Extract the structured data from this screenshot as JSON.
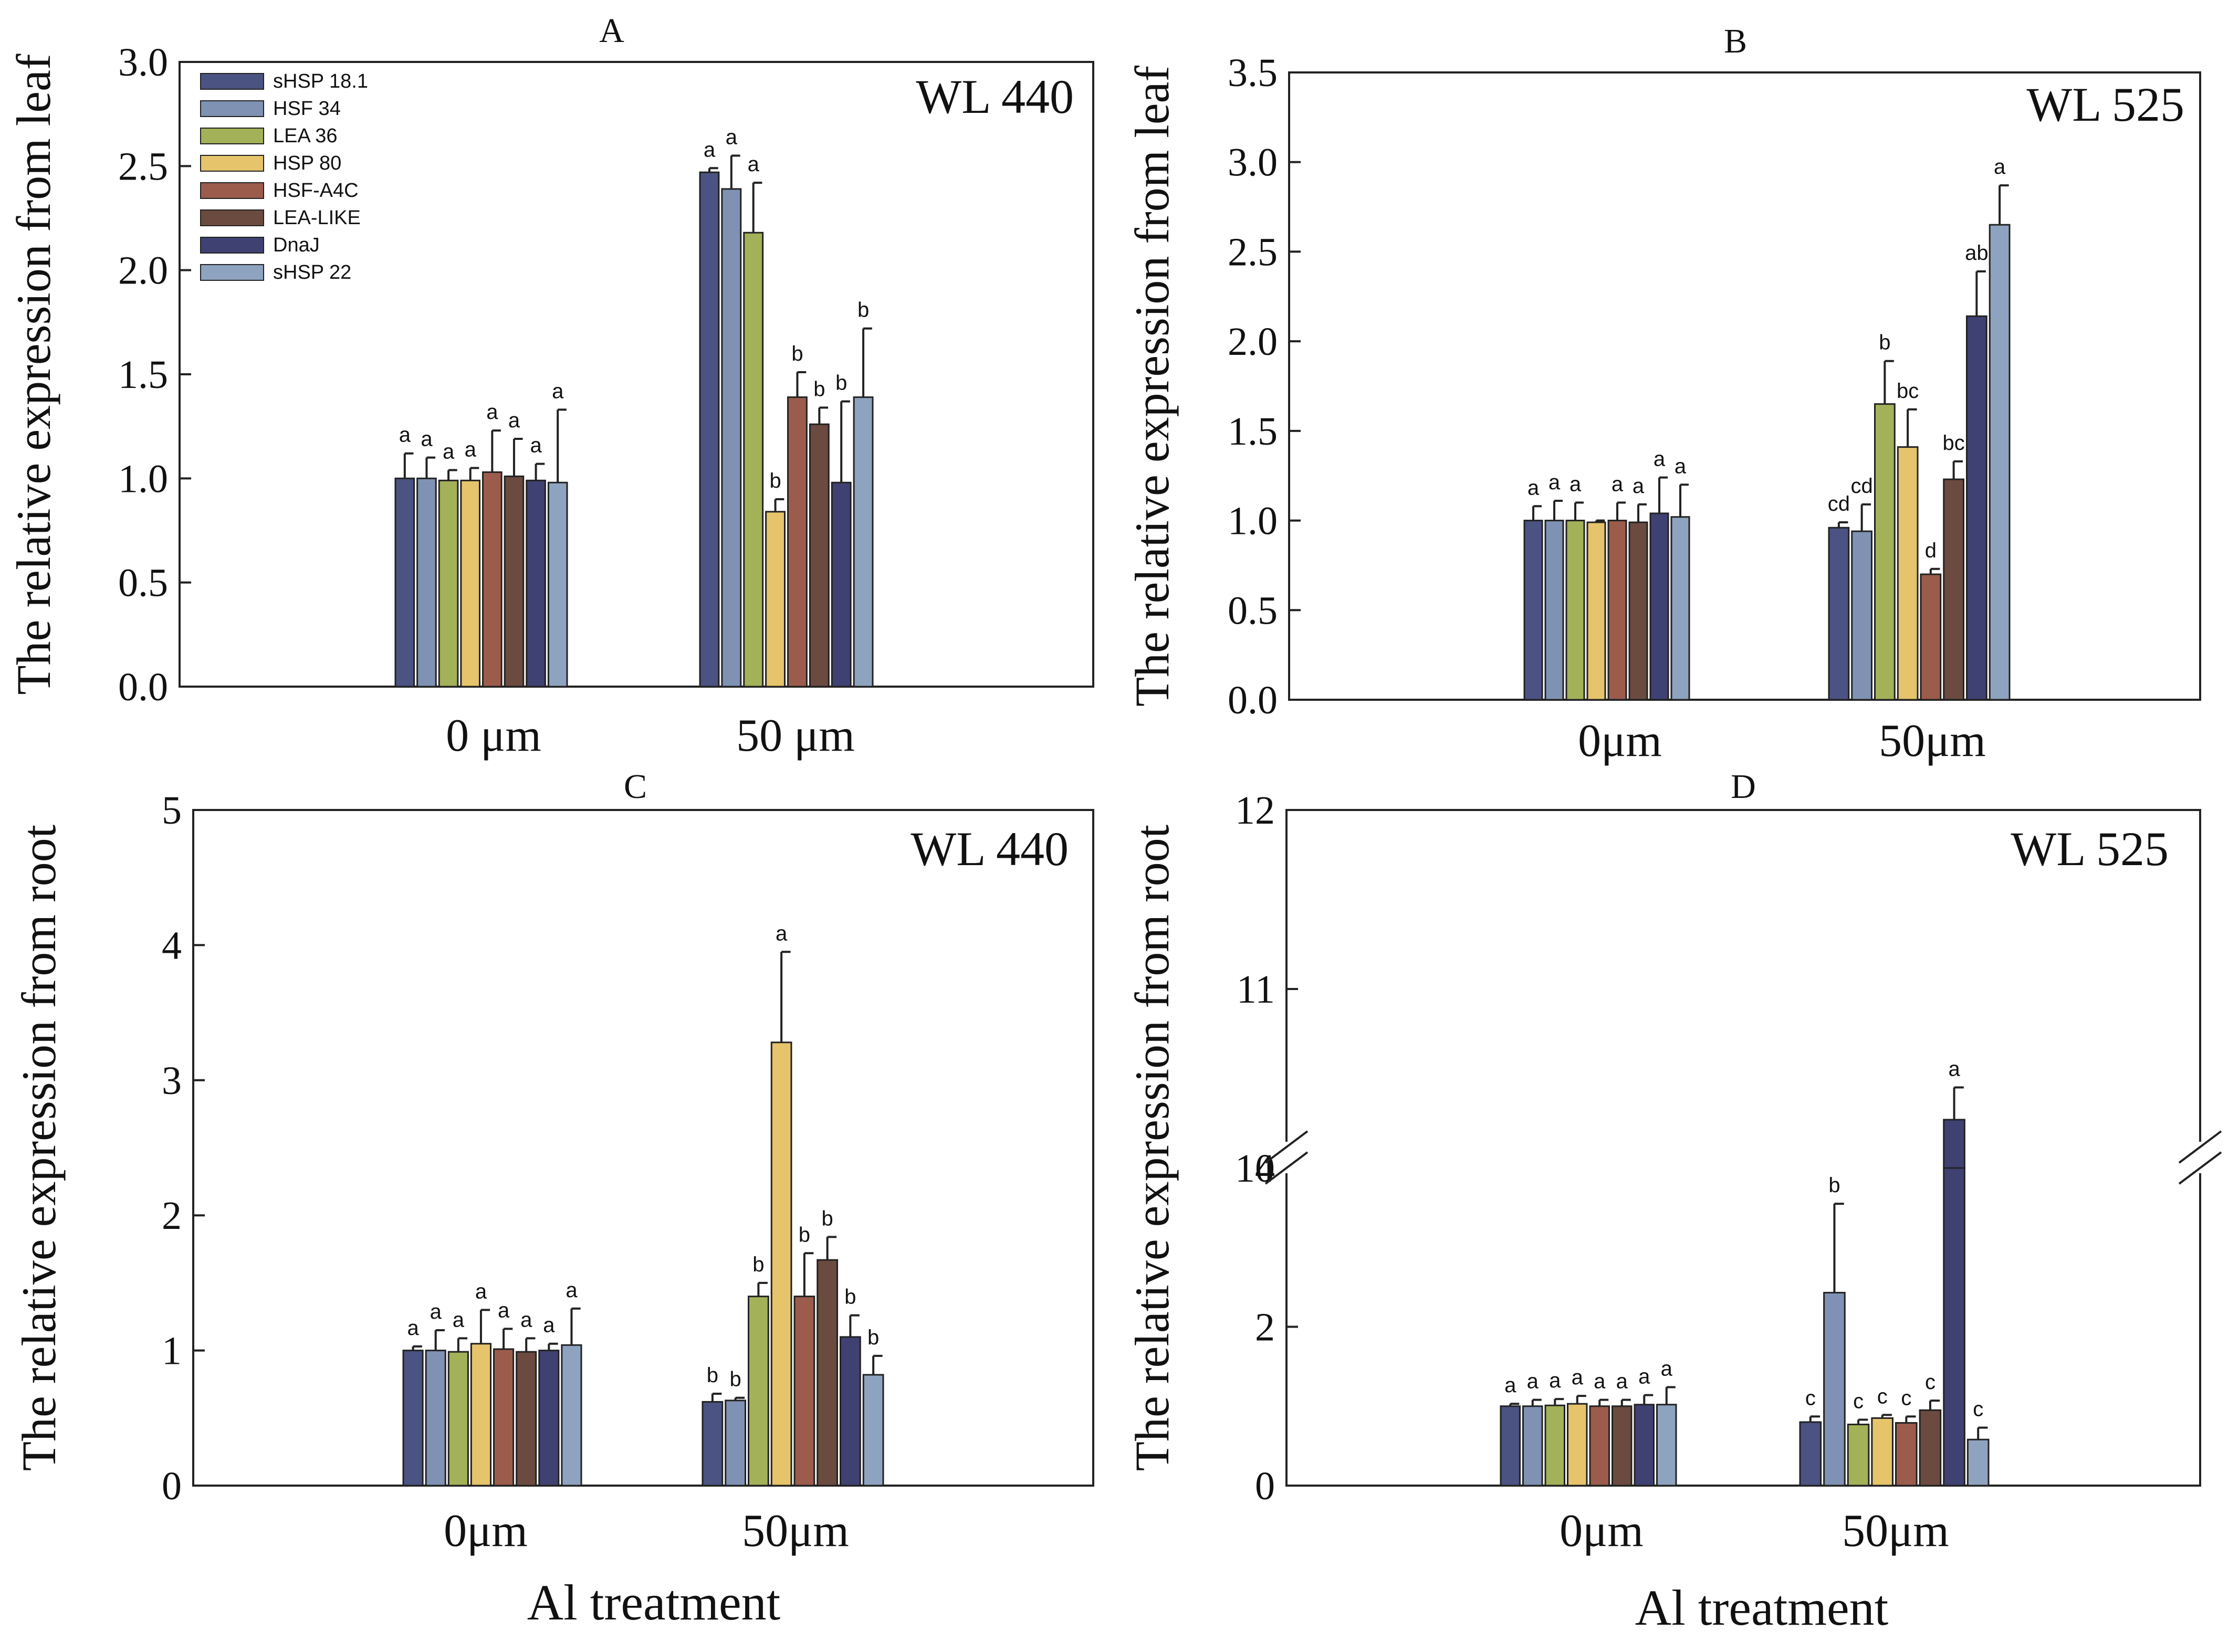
{
  "series_colors": [
    "#4a5382",
    "#7f92b3",
    "#a3b158",
    "#e5c46b",
    "#9b5c4c",
    "#6b4a3f",
    "#3f4173",
    "#8ea3bf"
  ],
  "legend": [
    "sHSP 18.1",
    "HSF 34",
    "LEA 36",
    "HSP 80",
    "HSF-A4C",
    "LEA-LIKE",
    "DnaJ",
    "sHSP 22"
  ],
  "x_axis_label": "Al treatment",
  "chart_data": [
    {
      "panel": "A",
      "type": "bar",
      "title": "A",
      "subtitle": "WL 440",
      "ylabel": "The relative expression from leaf",
      "ylim": [
        0,
        3.0
      ],
      "yticks": [
        "0.0",
        "0.5",
        "1.0",
        "1.5",
        "2.0",
        "2.5",
        "3.0"
      ],
      "grid": false,
      "legend_position": "top-left",
      "categories": [
        "0 μm",
        "50 μm"
      ],
      "series": [
        {
          "name": "sHSP 18.1",
          "values": [
            1.0,
            2.47
          ],
          "errors": [
            0.12,
            0.02
          ],
          "labels": [
            "a",
            "a"
          ]
        },
        {
          "name": "HSF 34",
          "values": [
            1.0,
            2.39
          ],
          "errors": [
            0.1,
            0.16
          ],
          "labels": [
            "a",
            "a"
          ]
        },
        {
          "name": "LEA 36",
          "values": [
            0.99,
            2.18
          ],
          "errors": [
            0.05,
            0.24
          ],
          "labels": [
            "a",
            "a"
          ]
        },
        {
          "name": "HSP 80",
          "values": [
            0.99,
            0.84
          ],
          "errors": [
            0.06,
            0.06
          ],
          "labels": [
            "a",
            "b"
          ]
        },
        {
          "name": "HSF-A4C",
          "values": [
            1.03,
            1.39
          ],
          "errors": [
            0.2,
            0.12
          ],
          "labels": [
            "a",
            "b"
          ]
        },
        {
          "name": "LEA-LIKE",
          "values": [
            1.01,
            1.26
          ],
          "errors": [
            0.18,
            0.08
          ],
          "labels": [
            "a",
            "b"
          ]
        },
        {
          "name": "DnaJ",
          "values": [
            0.99,
            0.98
          ],
          "errors": [
            0.08,
            0.39
          ],
          "labels": [
            "a",
            "b"
          ]
        },
        {
          "name": "sHSP 22",
          "values": [
            0.98,
            1.39
          ],
          "errors": [
            0.35,
            0.33
          ],
          "labels": [
            "a",
            "b"
          ]
        }
      ]
    },
    {
      "panel": "B",
      "type": "bar",
      "title": "B",
      "subtitle": "WL 525",
      "ylabel": "The relative expression from leaf",
      "ylim": [
        0,
        3.5
      ],
      "yticks": [
        "0.0",
        "0.5",
        "1.0",
        "1.5",
        "2.0",
        "2.5",
        "3.0",
        "3.5"
      ],
      "grid": false,
      "categories": [
        "0μm",
        "50μm"
      ],
      "series": [
        {
          "name": "sHSP 18.1",
          "values": [
            1.0,
            0.96
          ],
          "errors": [
            0.08,
            0.03
          ],
          "labels": [
            "a",
            "cd"
          ]
        },
        {
          "name": "HSF 34",
          "values": [
            1.0,
            0.94
          ],
          "errors": [
            0.11,
            0.15
          ],
          "labels": [
            "a",
            "cd"
          ]
        },
        {
          "name": "LEA 36",
          "values": [
            1.0,
            1.65
          ],
          "errors": [
            0.1,
            0.24
          ],
          "labels": [
            "a",
            "b"
          ]
        },
        {
          "name": "HSP 80",
          "values": [
            0.99,
            1.41
          ],
          "errors": [
            0.01,
            0.21
          ],
          "labels": [
            "",
            "bc"
          ]
        },
        {
          "name": "HSF-A4C",
          "values": [
            1.0,
            0.7
          ],
          "errors": [
            0.1,
            0.03
          ],
          "labels": [
            "a",
            "d"
          ]
        },
        {
          "name": "LEA-LIKE",
          "values": [
            0.99,
            1.23
          ],
          "errors": [
            0.1,
            0.1
          ],
          "labels": [
            "a",
            "bc"
          ]
        },
        {
          "name": "DnaJ",
          "values": [
            1.04,
            2.14
          ],
          "errors": [
            0.2,
            0.25
          ],
          "labels": [
            "a",
            "ab"
          ]
        },
        {
          "name": "sHSP 22",
          "values": [
            1.02,
            2.65
          ],
          "errors": [
            0.18,
            0.22
          ],
          "labels": [
            "a",
            "a"
          ]
        }
      ]
    },
    {
      "panel": "C",
      "type": "bar",
      "title": "C",
      "subtitle": "WL 440",
      "ylabel": "The relative expression from  root",
      "xlabel": "Al treatment",
      "ylim": [
        0,
        5
      ],
      "yticks": [
        "0",
        "1",
        "2",
        "3",
        "4",
        "5"
      ],
      "grid": false,
      "categories": [
        "0μm",
        "50μm"
      ],
      "series": [
        {
          "name": "sHSP 18.1",
          "values": [
            1.0,
            0.62
          ],
          "errors": [
            0.03,
            0.06
          ],
          "labels": [
            "a",
            "b"
          ]
        },
        {
          "name": "HSF 34",
          "values": [
            1.0,
            0.63
          ],
          "errors": [
            0.15,
            0.02
          ],
          "labels": [
            "a",
            "b"
          ]
        },
        {
          "name": "LEA 36",
          "values": [
            0.99,
            1.4
          ],
          "errors": [
            0.1,
            0.1
          ],
          "labels": [
            "a",
            "b"
          ]
        },
        {
          "name": "HSP 80",
          "values": [
            1.05,
            3.28
          ],
          "errors": [
            0.25,
            0.67
          ],
          "labels": [
            "a",
            "a"
          ]
        },
        {
          "name": "HSF-A4C",
          "values": [
            1.01,
            1.4
          ],
          "errors": [
            0.15,
            0.32
          ],
          "labels": [
            "a",
            "b"
          ]
        },
        {
          "name": "LEA-LIKE",
          "values": [
            0.99,
            1.67
          ],
          "errors": [
            0.1,
            0.17
          ],
          "labels": [
            "a",
            "b"
          ]
        },
        {
          "name": "DnaJ",
          "values": [
            1.0,
            1.1
          ],
          "errors": [
            0.05,
            0.16
          ],
          "labels": [
            "a",
            "b"
          ]
        },
        {
          "name": "sHSP 22",
          "values": [
            1.04,
            0.82
          ],
          "errors": [
            0.27,
            0.14
          ],
          "labels": [
            "a",
            "b"
          ]
        }
      ]
    },
    {
      "panel": "D",
      "type": "bar",
      "title": "D",
      "subtitle": "WL 525",
      "ylabel": "The relative expression from root",
      "xlabel": "Al treatment",
      "ylim": [
        0,
        12
      ],
      "axis_break": [
        4,
        10
      ],
      "yticks": [
        "0",
        "2",
        "4",
        "10",
        "11",
        "12"
      ],
      "grid": false,
      "categories": [
        "0μm",
        "50μm"
      ],
      "series": [
        {
          "name": "sHSP 18.1",
          "values": [
            1.0,
            0.8
          ],
          "errors": [
            0.03,
            0.07
          ],
          "labels": [
            "a",
            "c"
          ]
        },
        {
          "name": "HSF 34",
          "values": [
            1.0,
            2.43
          ],
          "errors": [
            0.08,
            1.12
          ],
          "labels": [
            "a",
            "b"
          ]
        },
        {
          "name": "LEA 36",
          "values": [
            1.01,
            0.77
          ],
          "errors": [
            0.08,
            0.06
          ],
          "labels": [
            "a",
            "c"
          ]
        },
        {
          "name": "HSP 80",
          "values": [
            1.03,
            0.85
          ],
          "errors": [
            0.1,
            0.04
          ],
          "labels": [
            "a",
            "c"
          ]
        },
        {
          "name": "HSF-A4C",
          "values": [
            1.0,
            0.79
          ],
          "errors": [
            0.08,
            0.08
          ],
          "labels": [
            "a",
            "c"
          ]
        },
        {
          "name": "LEA-LIKE",
          "values": [
            1.0,
            0.95
          ],
          "errors": [
            0.08,
            0.12
          ],
          "labels": [
            "a",
            "c"
          ]
        },
        {
          "name": "DnaJ",
          "values": [
            1.02,
            10.27
          ],
          "errors": [
            0.12,
            0.18
          ],
          "labels": [
            "a",
            "a"
          ]
        },
        {
          "name": "sHSP 22",
          "values": [
            1.02,
            0.58
          ],
          "errors": [
            0.22,
            0.15
          ],
          "labels": [
            "a",
            "c"
          ]
        }
      ]
    }
  ]
}
